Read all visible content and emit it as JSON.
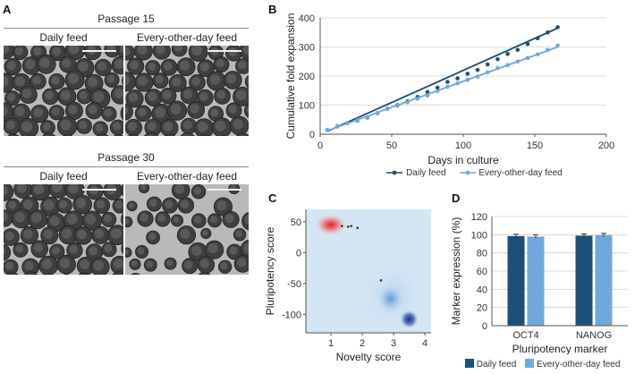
{
  "panels": {
    "a": {
      "letter": "A",
      "passage15_label": "Passage 15",
      "passage30_label": "Passage 30",
      "daily_label": "Daily feed",
      "eod_label": "Every-other-day feed"
    },
    "b": {
      "letter": "B"
    },
    "c": {
      "letter": "C"
    },
    "d": {
      "letter": "D"
    }
  },
  "colors": {
    "daily": "#1b4f7a",
    "eod": "#6fa8dc",
    "density_bg": "#d4e6f4",
    "red_cluster": "#e23535",
    "blue_cluster": "#1f3d8f"
  },
  "chart_data": [
    {
      "id": "B",
      "type": "line",
      "title": "",
      "xlabel": "Days in culture",
      "ylabel": "Cumulative fold expansion",
      "xlim": [
        0,
        200
      ],
      "ylim": [
        0,
        400
      ],
      "xticks": [
        0,
        50,
        100,
        150,
        200
      ],
      "yticks": [
        0,
        100,
        200,
        300,
        400
      ],
      "legend_position": "bottom",
      "series": [
        {
          "name": "Daily feed",
          "color": "#1b4f7a",
          "x": [
            5,
            12,
            19,
            26,
            33,
            40,
            47,
            54,
            61,
            68,
            75,
            82,
            89,
            96,
            103,
            110,
            117,
            124,
            131,
            138,
            145,
            152,
            159,
            166
          ],
          "y": [
            15,
            27,
            38,
            47,
            57,
            72,
            88,
            100,
            113,
            128,
            145,
            160,
            180,
            192,
            208,
            221,
            240,
            258,
            276,
            290,
            310,
            330,
            350,
            368
          ],
          "fit": [
            [
              5,
              10
            ],
            [
              166,
              365
            ]
          ]
        },
        {
          "name": "Every-other-day feed",
          "color": "#6fa8dc",
          "x": [
            5,
            12,
            19,
            26,
            33,
            40,
            47,
            54,
            61,
            68,
            75,
            82,
            89,
            96,
            103,
            110,
            117,
            124,
            131,
            138,
            145,
            152,
            159,
            166
          ],
          "y": [
            15,
            28,
            38,
            48,
            58,
            72,
            87,
            98,
            110,
            122,
            133,
            148,
            163,
            175,
            187,
            198,
            213,
            228,
            238,
            250,
            262,
            275,
            290,
            305
          ],
          "fit": [
            [
              5,
              12
            ],
            [
              166,
              300
            ]
          ]
        }
      ]
    },
    {
      "id": "C",
      "type": "scatter",
      "title": "",
      "xlabel": "Novelty score",
      "ylabel": "Pluripotency score",
      "xlim": [
        0.2,
        4.2
      ],
      "ylim": [
        -130,
        70
      ],
      "xticks": [
        1,
        2,
        3,
        4
      ],
      "yticks": [
        50,
        0,
        -50,
        -100
      ],
      "clusters": [
        {
          "name": "red cluster",
          "color": "#e23535",
          "cx": 1.0,
          "cy": 45
        },
        {
          "name": "light blue cluster",
          "color": "#5f9bd8",
          "cx": 2.9,
          "cy": -75
        },
        {
          "name": "dark blue cluster",
          "color": "#1f3d8f",
          "cx": 3.5,
          "cy": -108
        }
      ],
      "points": [
        {
          "x": 1.35,
          "y": 43
        },
        {
          "x": 1.55,
          "y": 42
        },
        {
          "x": 1.65,
          "y": 43
        },
        {
          "x": 1.85,
          "y": 40
        },
        {
          "x": 2.6,
          "y": -45
        }
      ]
    },
    {
      "id": "D",
      "type": "bar",
      "title": "",
      "xlabel": "Pluripotency marker",
      "ylabel": "Marker expression (%)",
      "ylim": [
        0,
        120
      ],
      "yticks": [
        0,
        20,
        40,
        60,
        80,
        100,
        120
      ],
      "categories": [
        "OCT4",
        "NANOG"
      ],
      "legend_position": "bottom",
      "series": [
        {
          "name": "Daily feed",
          "color": "#1b4f7a",
          "values": [
            98.5,
            99
          ]
        },
        {
          "name": "Every-other-day feed",
          "color": "#6fa8dc",
          "values": [
            98,
            99.5
          ]
        }
      ]
    }
  ]
}
